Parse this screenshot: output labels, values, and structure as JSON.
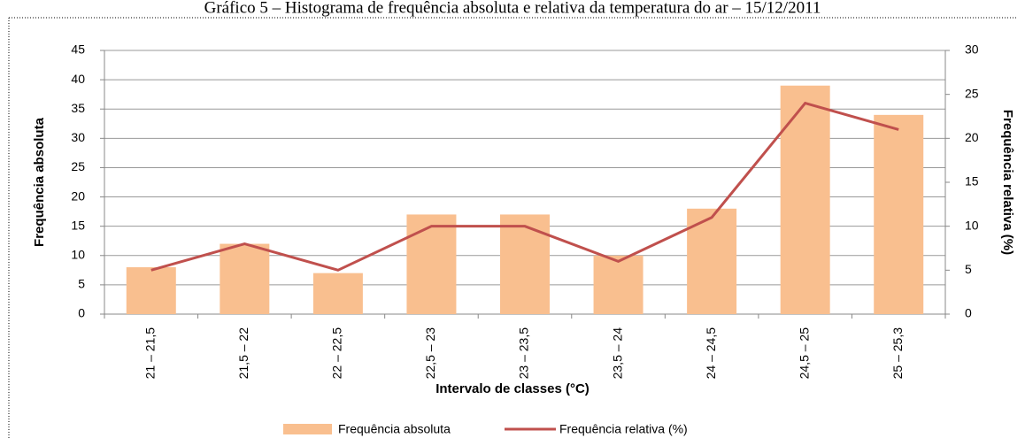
{
  "chart_data": {
    "type": "bar",
    "title": "Gráfico 5 – Histograma de frequência absoluta e relativa da temperatura do ar – 15/12/2011",
    "x_label": "Intervalo de classes (°C)",
    "y_label": "Frequência absoluta",
    "y2_label": "Frequência relativa (%)",
    "categories": [
      "21 – 21,5",
      "21,5 – 22",
      "22 – 22,5",
      "22,5 – 23",
      "23 – 23,5",
      "23,5 – 24",
      "24 – 24,5",
      "24,5 – 25",
      "25 – 25,3"
    ],
    "series": [
      {
        "name": "Frequência absoluta",
        "type": "bar",
        "color": "#f9bf8f",
        "values": [
          8,
          12,
          7,
          17,
          17,
          10,
          18,
          39,
          34
        ]
      },
      {
        "name": "Frequência relativa (%)",
        "type": "line",
        "axis": "y2",
        "color": "#c0504d",
        "values": [
          5,
          8,
          5,
          10,
          10,
          6,
          11,
          24,
          21
        ]
      }
    ],
    "ylim": [
      0,
      45
    ],
    "yticks": [
      0,
      5,
      10,
      15,
      20,
      25,
      30,
      35,
      40,
      45
    ],
    "y2lim": [
      0,
      30
    ],
    "y2ticks": [
      0,
      5,
      10,
      15,
      20,
      25,
      30
    ],
    "grid": true,
    "legend": "bottom"
  }
}
